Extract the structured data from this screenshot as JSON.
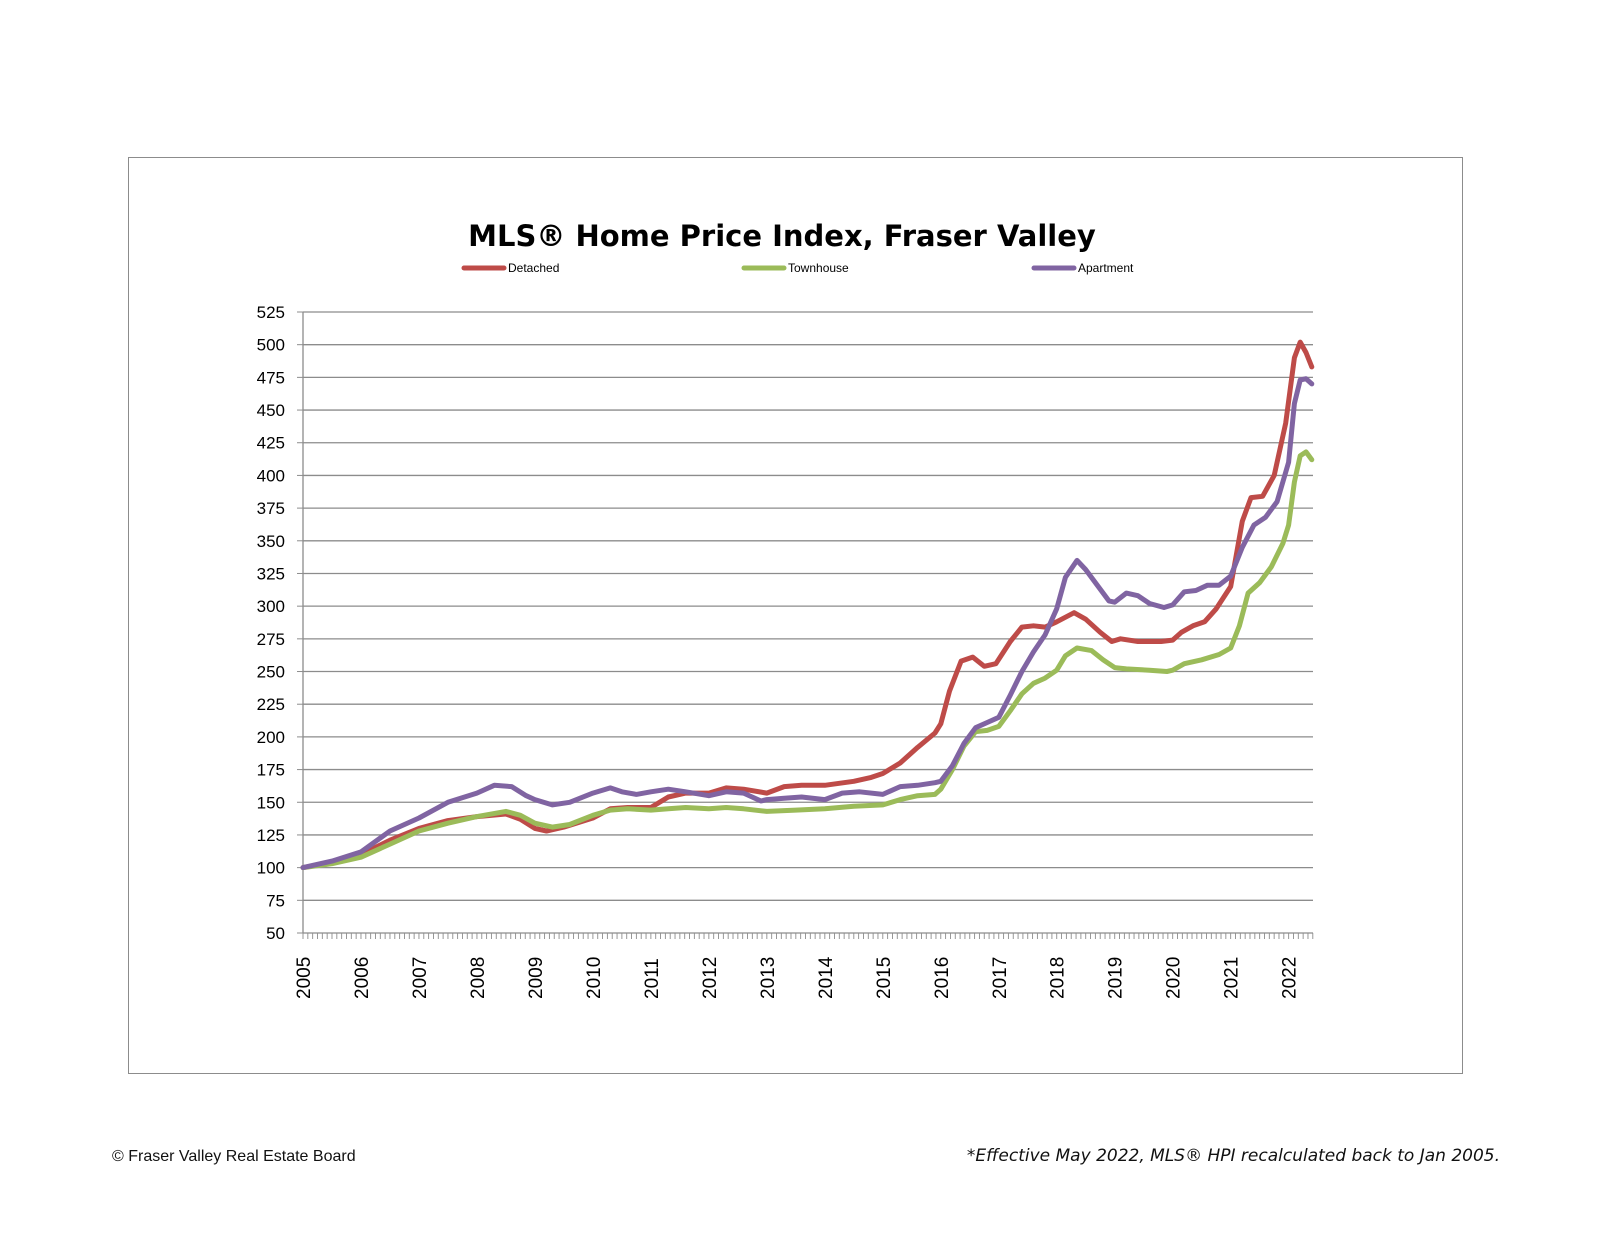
{
  "footer": {
    "copyright": "© Fraser Valley Real Estate Board",
    "note": "*Effective May 2022, MLS® HPI recalculated back to Jan 2005."
  },
  "chart_data": {
    "type": "line",
    "title": "MLS® Home Price Index, Fraser Valley",
    "xlabel": "",
    "ylabel": "",
    "ylim": [
      50,
      525
    ],
    "yticks": [
      50,
      75,
      100,
      125,
      150,
      175,
      200,
      225,
      250,
      275,
      300,
      325,
      350,
      375,
      400,
      425,
      450,
      475,
      500,
      525
    ],
    "xlim": [
      2005,
      2022.42
    ],
    "xticks": [
      "2005",
      "2006",
      "2007",
      "2008",
      "2009",
      "2010",
      "2011",
      "2012",
      "2013",
      "2014",
      "2015",
      "2016",
      "2017",
      "2018",
      "2019",
      "2020",
      "2021",
      "2022"
    ],
    "grid": true,
    "legend": "top",
    "series": [
      {
        "name": "Detached",
        "color": "#be4b48",
        "points": [
          [
            2005.0,
            100
          ],
          [
            2005.5,
            104
          ],
          [
            2006.0,
            110
          ],
          [
            2006.5,
            121
          ],
          [
            2007.0,
            130
          ],
          [
            2007.5,
            136
          ],
          [
            2008.0,
            139
          ],
          [
            2008.5,
            141
          ],
          [
            2008.75,
            137
          ],
          [
            2009.0,
            130
          ],
          [
            2009.2,
            128
          ],
          [
            2009.5,
            131
          ],
          [
            2010.0,
            138
          ],
          [
            2010.3,
            145
          ],
          [
            2010.6,
            146
          ],
          [
            2011.0,
            146
          ],
          [
            2011.3,
            154
          ],
          [
            2011.6,
            157
          ],
          [
            2012.0,
            157
          ],
          [
            2012.3,
            161
          ],
          [
            2012.6,
            160
          ],
          [
            2013.0,
            157
          ],
          [
            2013.3,
            162
          ],
          [
            2013.6,
            163
          ],
          [
            2014.0,
            163
          ],
          [
            2014.5,
            166
          ],
          [
            2014.8,
            169
          ],
          [
            2015.0,
            172
          ],
          [
            2015.3,
            180
          ],
          [
            2015.6,
            192
          ],
          [
            2015.9,
            203
          ],
          [
            2016.0,
            210
          ],
          [
            2016.15,
            235
          ],
          [
            2016.35,
            258
          ],
          [
            2016.55,
            261
          ],
          [
            2016.75,
            254
          ],
          [
            2016.95,
            256
          ],
          [
            2017.2,
            273
          ],
          [
            2017.4,
            284
          ],
          [
            2017.6,
            285
          ],
          [
            2017.8,
            284
          ],
          [
            2018.0,
            288
          ],
          [
            2018.3,
            295
          ],
          [
            2018.5,
            290
          ],
          [
            2018.75,
            280
          ],
          [
            2018.95,
            273
          ],
          [
            2019.1,
            275
          ],
          [
            2019.4,
            273
          ],
          [
            2019.8,
            273
          ],
          [
            2020.0,
            274
          ],
          [
            2020.15,
            280
          ],
          [
            2020.35,
            285
          ],
          [
            2020.55,
            288
          ],
          [
            2020.75,
            298
          ],
          [
            2021.0,
            315
          ],
          [
            2021.2,
            365
          ],
          [
            2021.35,
            383
          ],
          [
            2021.55,
            384
          ],
          [
            2021.75,
            400
          ],
          [
            2021.95,
            440
          ],
          [
            2022.1,
            490
          ],
          [
            2022.2,
            502
          ],
          [
            2022.3,
            494
          ],
          [
            2022.4,
            483
          ]
        ]
      },
      {
        "name": "Townhouse",
        "color": "#9bbb59",
        "points": [
          [
            2005.0,
            100
          ],
          [
            2005.5,
            103
          ],
          [
            2006.0,
            108
          ],
          [
            2006.5,
            118
          ],
          [
            2007.0,
            128
          ],
          [
            2007.5,
            134
          ],
          [
            2008.0,
            139
          ],
          [
            2008.5,
            143
          ],
          [
            2008.75,
            140
          ],
          [
            2009.0,
            134
          ],
          [
            2009.3,
            131
          ],
          [
            2009.6,
            133
          ],
          [
            2010.0,
            140
          ],
          [
            2010.3,
            144
          ],
          [
            2010.6,
            145
          ],
          [
            2011.0,
            144
          ],
          [
            2011.3,
            145
          ],
          [
            2011.6,
            146
          ],
          [
            2012.0,
            145
          ],
          [
            2012.3,
            146
          ],
          [
            2012.6,
            145
          ],
          [
            2013.0,
            143
          ],
          [
            2013.5,
            144
          ],
          [
            2014.0,
            145
          ],
          [
            2014.5,
            147
          ],
          [
            2015.0,
            148
          ],
          [
            2015.3,
            152
          ],
          [
            2015.6,
            155
          ],
          [
            2015.9,
            156
          ],
          [
            2016.0,
            160
          ],
          [
            2016.2,
            175
          ],
          [
            2016.4,
            193
          ],
          [
            2016.6,
            204
          ],
          [
            2016.8,
            205
          ],
          [
            2017.0,
            208
          ],
          [
            2017.2,
            220
          ],
          [
            2017.4,
            233
          ],
          [
            2017.6,
            241
          ],
          [
            2017.8,
            245
          ],
          [
            2018.0,
            251
          ],
          [
            2018.15,
            262
          ],
          [
            2018.35,
            268
          ],
          [
            2018.6,
            266
          ],
          [
            2018.8,
            259
          ],
          [
            2019.0,
            253
          ],
          [
            2019.2,
            252
          ],
          [
            2019.6,
            251
          ],
          [
            2019.9,
            250
          ],
          [
            2020.0,
            251
          ],
          [
            2020.2,
            256
          ],
          [
            2020.5,
            259
          ],
          [
            2020.8,
            263
          ],
          [
            2021.0,
            268
          ],
          [
            2021.15,
            285
          ],
          [
            2021.3,
            310
          ],
          [
            2021.5,
            318
          ],
          [
            2021.7,
            330
          ],
          [
            2021.9,
            348
          ],
          [
            2022.0,
            362
          ],
          [
            2022.1,
            395
          ],
          [
            2022.2,
            415
          ],
          [
            2022.3,
            418
          ],
          [
            2022.4,
            412
          ]
        ]
      },
      {
        "name": "Apartment",
        "color": "#8064a2",
        "points": [
          [
            2005.0,
            100
          ],
          [
            2005.5,
            105
          ],
          [
            2006.0,
            112
          ],
          [
            2006.5,
            128
          ],
          [
            2007.0,
            138
          ],
          [
            2007.5,
            150
          ],
          [
            2008.0,
            157
          ],
          [
            2008.3,
            163
          ],
          [
            2008.6,
            162
          ],
          [
            2008.85,
            155
          ],
          [
            2009.0,
            152
          ],
          [
            2009.3,
            148
          ],
          [
            2009.6,
            150
          ],
          [
            2010.0,
            157
          ],
          [
            2010.3,
            161
          ],
          [
            2010.5,
            158
          ],
          [
            2010.75,
            156
          ],
          [
            2011.0,
            158
          ],
          [
            2011.3,
            160
          ],
          [
            2011.6,
            158
          ],
          [
            2012.0,
            155
          ],
          [
            2012.3,
            158
          ],
          [
            2012.6,
            157
          ],
          [
            2012.9,
            151
          ],
          [
            2013.0,
            152
          ],
          [
            2013.3,
            153
          ],
          [
            2013.6,
            154
          ],
          [
            2014.0,
            152
          ],
          [
            2014.3,
            157
          ],
          [
            2014.6,
            158
          ],
          [
            2015.0,
            156
          ],
          [
            2015.3,
            162
          ],
          [
            2015.6,
            163
          ],
          [
            2015.9,
            165
          ],
          [
            2016.0,
            166
          ],
          [
            2016.2,
            178
          ],
          [
            2016.4,
            195
          ],
          [
            2016.6,
            207
          ],
          [
            2016.8,
            211
          ],
          [
            2017.0,
            215
          ],
          [
            2017.2,
            232
          ],
          [
            2017.4,
            250
          ],
          [
            2017.6,
            265
          ],
          [
            2017.8,
            278
          ],
          [
            2018.0,
            298
          ],
          [
            2018.15,
            322
          ],
          [
            2018.35,
            335
          ],
          [
            2018.5,
            328
          ],
          [
            2018.7,
            316
          ],
          [
            2018.9,
            304
          ],
          [
            2019.0,
            303
          ],
          [
            2019.2,
            310
          ],
          [
            2019.4,
            308
          ],
          [
            2019.6,
            302
          ],
          [
            2019.85,
            299
          ],
          [
            2020.0,
            301
          ],
          [
            2020.2,
            311
          ],
          [
            2020.4,
            312
          ],
          [
            2020.6,
            316
          ],
          [
            2020.8,
            316
          ],
          [
            2021.0,
            323
          ],
          [
            2021.2,
            345
          ],
          [
            2021.4,
            362
          ],
          [
            2021.6,
            368
          ],
          [
            2021.8,
            380
          ],
          [
            2022.0,
            410
          ],
          [
            2022.1,
            455
          ],
          [
            2022.2,
            473
          ],
          [
            2022.3,
            474
          ],
          [
            2022.4,
            470
          ]
        ]
      }
    ]
  }
}
